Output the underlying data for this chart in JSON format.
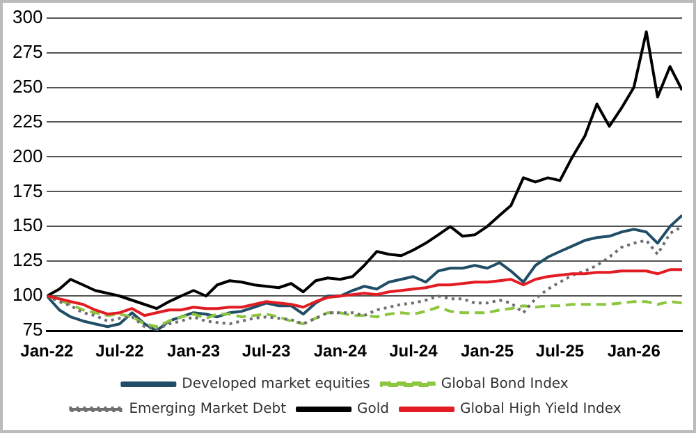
{
  "chart_data": {
    "type": "line",
    "x": [
      "2022-01",
      "2022-02",
      "2022-03",
      "2022-04",
      "2022-05",
      "2022-06",
      "2022-07",
      "2022-08",
      "2022-09",
      "2022-10",
      "2022-11",
      "2022-12",
      "2023-01",
      "2023-02",
      "2023-03",
      "2023-04",
      "2023-05",
      "2023-06",
      "2023-07",
      "2023-08",
      "2023-09",
      "2023-10",
      "2023-11",
      "2023-12",
      "2024-01",
      "2024-02",
      "2024-03",
      "2024-04",
      "2024-05",
      "2024-06",
      "2024-07",
      "2024-08",
      "2024-09",
      "2024-10",
      "2024-11",
      "2024-12",
      "2025-01",
      "2025-02",
      "2025-03",
      "2025-04",
      "2025-05",
      "2025-06",
      "2025-07",
      "2025-08",
      "2025-09",
      "2025-10",
      "2025-11",
      "2025-12",
      "2026-01",
      "2026-02",
      "2026-03",
      "2026-04",
      "2026-05"
    ],
    "series": [
      {
        "name": "Developed market equities",
        "color": "#1f4e66",
        "line_style": "solid",
        "values": [
          100,
          90,
          85,
          82,
          80,
          78,
          80,
          88,
          80,
          75,
          82,
          85,
          88,
          87,
          85,
          88,
          89,
          92,
          95,
          93,
          93,
          87,
          95,
          100,
          100,
          104,
          107,
          105,
          110,
          112,
          114,
          110,
          118,
          120,
          120,
          122,
          120,
          124,
          118,
          110,
          122,
          128,
          132,
          136,
          140,
          142,
          143,
          146,
          148,
          146,
          138,
          150,
          158
        ]
      },
      {
        "name": "Global Bond Index",
        "color": "#8cc63f",
        "line_style": "dashed",
        "values": [
          100,
          97,
          94,
          90,
          88,
          86,
          87,
          85,
          80,
          78,
          82,
          85,
          87,
          84,
          87,
          87,
          85,
          86,
          87,
          85,
          82,
          80,
          84,
          88,
          88,
          86,
          86,
          85,
          87,
          88,
          87,
          89,
          92,
          89,
          88,
          88,
          88,
          90,
          91,
          93,
          92,
          93,
          93,
          94,
          94,
          94,
          94,
          95,
          96,
          96,
          94,
          96,
          95
        ]
      },
      {
        "name": "Emerging Market Debt",
        "color": "#6d6e71",
        "line_style": "dotted",
        "values": [
          100,
          96,
          93,
          88,
          86,
          82,
          84,
          85,
          78,
          76,
          80,
          82,
          85,
          82,
          81,
          80,
          82,
          84,
          85,
          84,
          83,
          80,
          84,
          88,
          88,
          88,
          86,
          90,
          92,
          94,
          95,
          97,
          100,
          98,
          98,
          95,
          95,
          97,
          95,
          88,
          98,
          105,
          110,
          115,
          118,
          122,
          128,
          135,
          138,
          140,
          130,
          145,
          150
        ]
      },
      {
        "name": "Gold",
        "color": "#000000",
        "line_style": "solid",
        "values": [
          100,
          105,
          112,
          108,
          104,
          102,
          100,
          97,
          94,
          91,
          96,
          100,
          104,
          100,
          108,
          111,
          110,
          108,
          107,
          106,
          109,
          103,
          111,
          113,
          112,
          114,
          122,
          132,
          130,
          129,
          133,
          138,
          144,
          150,
          143,
          144,
          150,
          158,
          165,
          185,
          182,
          185,
          183,
          200,
          215,
          238,
          222,
          235,
          250,
          290,
          243,
          265,
          248
        ]
      },
      {
        "name": "Global High Yield Index",
        "color": "#e31b23",
        "line_style": "solid",
        "values": [
          100,
          98,
          96,
          94,
          90,
          87,
          88,
          91,
          86,
          88,
          90,
          90,
          92,
          91,
          91,
          92,
          92,
          94,
          96,
          95,
          94,
          92,
          96,
          99,
          100,
          101,
          102,
          101,
          103,
          104,
          105,
          106,
          108,
          108,
          109,
          110,
          110,
          111,
          112,
          108,
          112,
          114,
          115,
          116,
          116,
          117,
          117,
          118,
          118,
          118,
          116,
          119,
          119
        ]
      }
    ],
    "xlim": [
      "2022-01",
      "2026-05"
    ],
    "xticks": [
      {
        "value": "2022-01",
        "label": "Jan-22"
      },
      {
        "value": "2022-07",
        "label": "Jul-22"
      },
      {
        "value": "2023-01",
        "label": "Jan-23"
      },
      {
        "value": "2023-07",
        "label": "Jul-23"
      },
      {
        "value": "2024-01",
        "label": "Jan-24"
      },
      {
        "value": "2024-07",
        "label": "Jul-24"
      },
      {
        "value": "2025-01",
        "label": "Jan-25"
      },
      {
        "value": "2025-07",
        "label": "Jul-25"
      },
      {
        "value": "2026-01",
        "label": "Jan-26"
      }
    ],
    "ylim": [
      75,
      300
    ],
    "yticks": [
      75,
      100,
      125,
      150,
      175,
      200,
      225,
      250,
      275,
      300
    ],
    "grid": "y",
    "legend": "bottom",
    "marker": "none"
  }
}
